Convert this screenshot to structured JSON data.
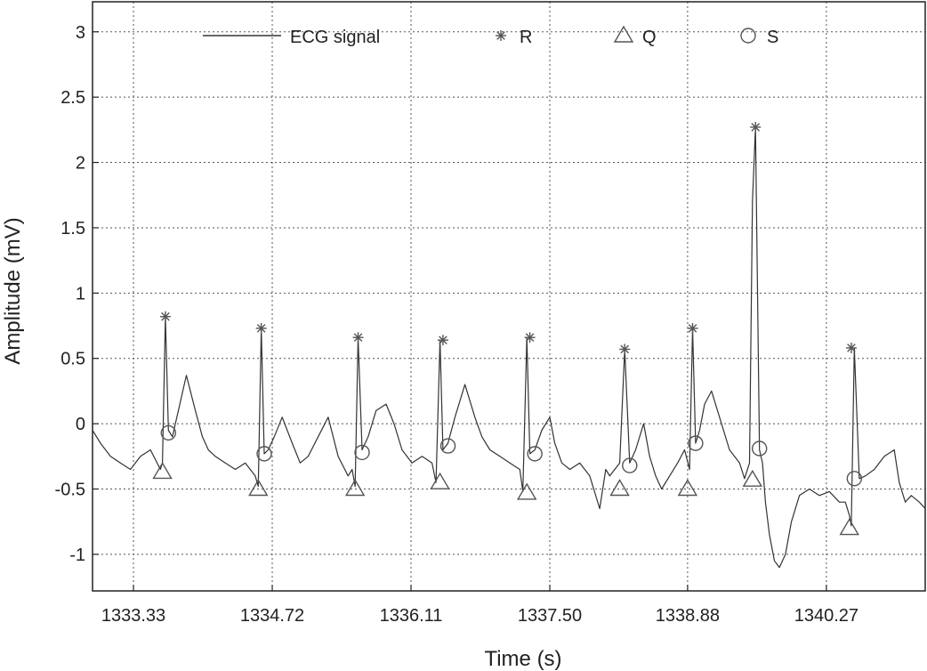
{
  "chart_data": {
    "type": "line",
    "xlabel": "Time (s)",
    "ylabel": "Amplitude (mV)",
    "xlim": [
      1332.92,
      1341.26
    ],
    "ylim": [
      -1.28,
      3.23
    ],
    "xticks": [
      1333.33,
      1334.72,
      1336.11,
      1337.5,
      1338.88,
      1340.27
    ],
    "xtick_labels": [
      "1333.33",
      "1334.72",
      "1336.11",
      "1337.50",
      "1338.88",
      "1340.27"
    ],
    "yticks": [
      -1,
      -0.5,
      0,
      0.5,
      1,
      1.5,
      2,
      2.5,
      3
    ],
    "ytick_labels": [
      "-1",
      "-0.5",
      "0",
      "0.5",
      "1",
      "1.5",
      "2",
      "2.5",
      "3"
    ],
    "grid": true,
    "legend": {
      "placement": "top",
      "entries": [
        "ECG signal",
        "R",
        "Q",
        "S"
      ]
    },
    "series": [
      {
        "name": "ECG signal",
        "style": "line",
        "x": [
          1332.92,
          1333.0,
          1333.1,
          1333.2,
          1333.3,
          1333.4,
          1333.5,
          1333.6,
          1333.62,
          1333.65,
          1333.68,
          1333.72,
          1333.78,
          1333.86,
          1333.95,
          1334.02,
          1334.08,
          1334.15,
          1334.25,
          1334.35,
          1334.45,
          1334.55,
          1334.58,
          1334.61,
          1334.64,
          1334.68,
          1334.74,
          1334.82,
          1334.92,
          1335.0,
          1335.08,
          1335.18,
          1335.28,
          1335.38,
          1335.48,
          1335.52,
          1335.55,
          1335.58,
          1335.62,
          1335.68,
          1335.76,
          1335.86,
          1335.94,
          1336.02,
          1336.12,
          1336.22,
          1336.32,
          1336.36,
          1336.4,
          1336.43,
          1336.48,
          1336.55,
          1336.65,
          1336.75,
          1336.82,
          1336.9,
          1337.0,
          1337.1,
          1337.2,
          1337.23,
          1337.27,
          1337.3,
          1337.35,
          1337.42,
          1337.5,
          1337.55,
          1337.62,
          1337.7,
          1337.8,
          1337.9,
          1338.0,
          1338.06,
          1338.1,
          1338.15,
          1338.2,
          1338.25,
          1338.3,
          1338.36,
          1338.44,
          1338.5,
          1338.56,
          1338.62,
          1338.7,
          1338.78,
          1338.85,
          1338.9,
          1338.93,
          1338.96,
          1339.0,
          1339.05,
          1339.12,
          1339.2,
          1339.3,
          1339.4,
          1339.45,
          1339.5,
          1339.53,
          1339.56,
          1339.6,
          1339.63,
          1339.66,
          1339.7,
          1339.75,
          1339.8,
          1339.86,
          1339.92,
          1340.0,
          1340.1,
          1340.2,
          1340.3,
          1340.4,
          1340.46,
          1340.5,
          1340.52,
          1340.55,
          1340.6,
          1340.66,
          1340.75,
          1340.85,
          1340.95,
          1341.0,
          1341.06,
          1341.12,
          1341.2,
          1341.26
        ],
        "y": [
          -0.05,
          -0.15,
          -0.25,
          -0.3,
          -0.35,
          -0.25,
          -0.2,
          -0.35,
          -0.3,
          0.82,
          -0.05,
          -0.1,
          0.1,
          0.37,
          0.1,
          -0.1,
          -0.2,
          -0.25,
          -0.3,
          -0.35,
          -0.3,
          -0.4,
          -0.48,
          0.73,
          -0.23,
          -0.2,
          -0.1,
          0.05,
          -0.15,
          -0.3,
          -0.25,
          -0.1,
          0.05,
          -0.25,
          -0.4,
          -0.35,
          -0.48,
          0.66,
          -0.2,
          -0.1,
          0.1,
          0.15,
          0.0,
          -0.2,
          -0.3,
          -0.25,
          -0.3,
          -0.45,
          0.64,
          -0.2,
          -0.15,
          0.05,
          0.3,
          0.05,
          -0.1,
          -0.2,
          -0.25,
          -0.3,
          -0.35,
          -0.52,
          0.66,
          -0.23,
          -0.2,
          -0.05,
          0.05,
          -0.15,
          -0.3,
          -0.35,
          -0.3,
          -0.4,
          -0.65,
          -0.35,
          -0.4,
          -0.35,
          -0.3,
          0.57,
          -0.3,
          -0.2,
          0.0,
          -0.25,
          -0.4,
          -0.5,
          -0.4,
          -0.3,
          -0.2,
          -0.35,
          0.73,
          -0.15,
          -0.05,
          0.15,
          0.25,
          0.05,
          -0.2,
          -0.3,
          -0.42,
          -0.3,
          1.7,
          2.27,
          -0.2,
          -0.3,
          -0.6,
          -0.85,
          -1.05,
          -1.1,
          -1.0,
          -0.75,
          -0.55,
          -0.5,
          -0.55,
          -0.52,
          -0.6,
          -0.6,
          -0.7,
          -0.78,
          0.58,
          -0.42,
          -0.4,
          -0.35,
          -0.25,
          -0.2,
          -0.45,
          -0.6,
          -0.55,
          -0.6,
          -0.65
        ]
      },
      {
        "name": "R",
        "style": "marker-star",
        "x": [
          1333.65,
          1334.61,
          1335.58,
          1336.43,
          1337.3,
          1338.25,
          1338.93,
          1339.56,
          1340.52
        ],
        "y": [
          0.82,
          0.73,
          0.66,
          0.64,
          0.66,
          0.57,
          0.73,
          2.27,
          0.58
        ]
      },
      {
        "name": "Q",
        "style": "marker-triangle",
        "x": [
          1333.62,
          1334.58,
          1335.55,
          1336.4,
          1337.27,
          1338.2,
          1338.88,
          1339.53,
          1340.5
        ],
        "y": [
          -0.37,
          -0.5,
          -0.5,
          -0.45,
          -0.53,
          -0.5,
          -0.5,
          -0.43,
          -0.8
        ]
      },
      {
        "name": "S",
        "style": "marker-circle",
        "x": [
          1333.68,
          1334.64,
          1335.62,
          1336.48,
          1337.35,
          1338.3,
          1338.96,
          1339.6,
          1340.55
        ],
        "y": [
          -0.07,
          -0.23,
          -0.22,
          -0.17,
          -0.23,
          -0.32,
          -0.15,
          -0.19,
          -0.42
        ]
      }
    ]
  }
}
